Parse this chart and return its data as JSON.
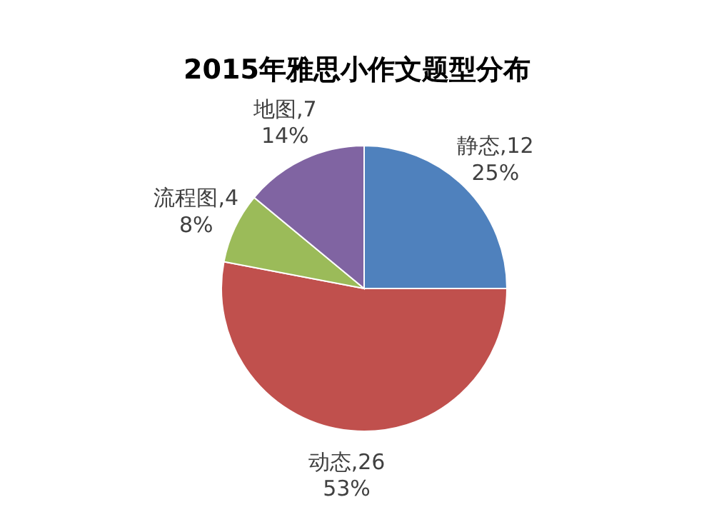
{
  "chart_data": {
    "type": "pie",
    "title": "2015年雅思小作文题型分布",
    "categories": [
      "静态,12",
      "动态,26",
      "流程图,4",
      "地图,7"
    ],
    "values": [
      25,
      53,
      8,
      14
    ],
    "colors": [
      "#4f81bd",
      "#c0504d",
      "#9bbb59",
      "#8064a2"
    ],
    "value_labels": [
      "25%",
      "53%",
      "8%",
      "14%"
    ]
  }
}
